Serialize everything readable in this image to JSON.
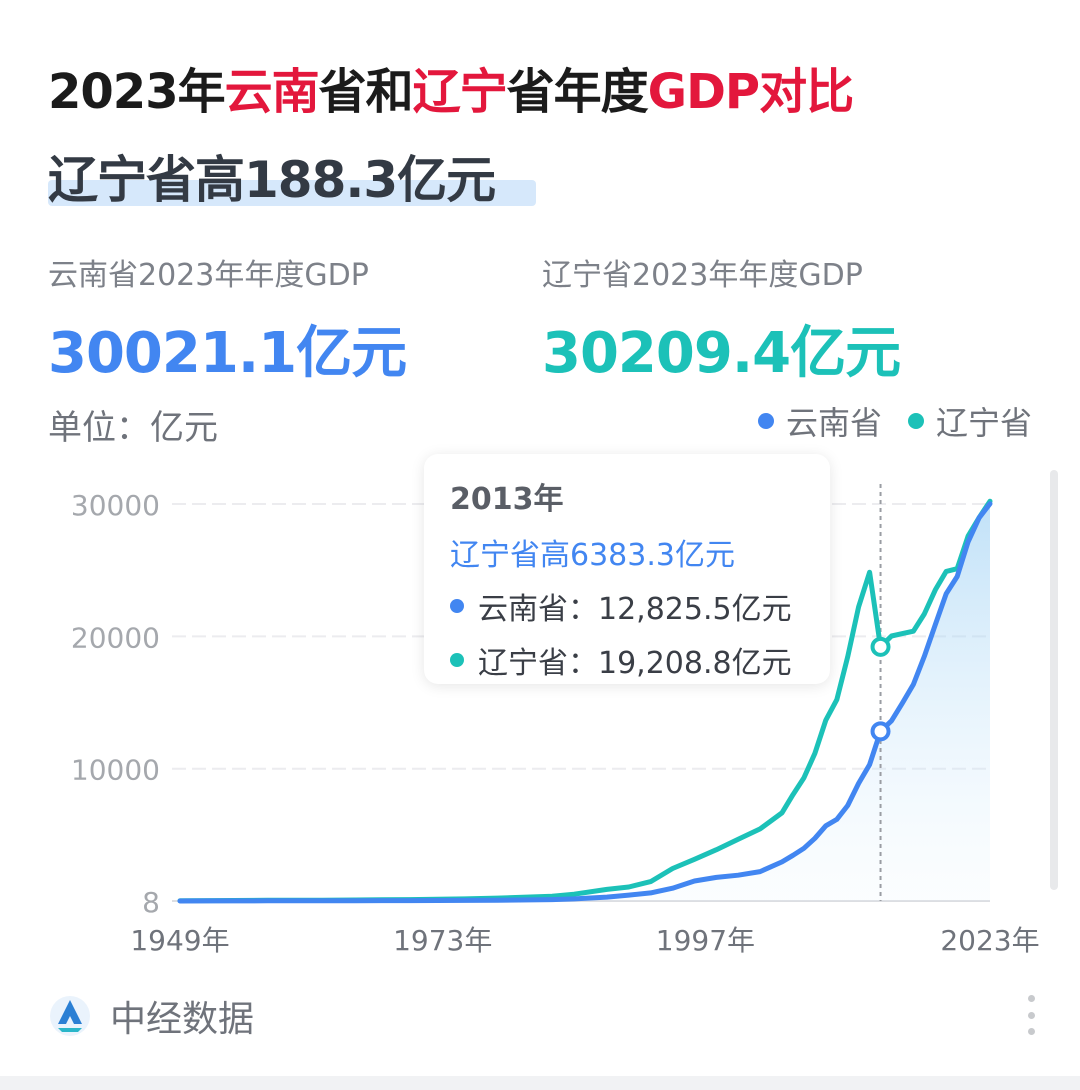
{
  "title": {
    "p1": "2023年",
    "p2": "云南",
    "p3": "省和",
    "p4": "辽宁",
    "p5": "省年度",
    "p6": "GDP对比"
  },
  "headline": "辽宁省高188.3亿元",
  "stats": [
    {
      "label": "云南省2023年年度GDP",
      "value": "30021.1亿元"
    },
    {
      "label": "辽宁省2023年年度GDP",
      "value": "30209.4亿元"
    }
  ],
  "unit_label": "单位：亿元",
  "legend": [
    {
      "name": "云南省",
      "color": "#4286f1"
    },
    {
      "name": "辽宁省",
      "color": "#1cc1b8"
    }
  ],
  "tooltip": {
    "year": "2013年",
    "diff": "辽宁省高6383.3亿元",
    "rows": [
      {
        "label": "云南省：",
        "value": "12,825.5亿元",
        "color": "#4286f1"
      },
      {
        "label": "辽宁省：",
        "value": "19,208.8亿元",
        "color": "#1cc1b8"
      }
    ]
  },
  "footer": {
    "source": "中经数据",
    "logo_icon": "zhongjing-logo-icon",
    "menu_icon": "more-vertical-icon"
  },
  "chart_data": {
    "type": "line",
    "x": [
      1949,
      1952,
      1957,
      1962,
      1965,
      1970,
      1975,
      1978,
      1980,
      1983,
      1985,
      1988,
      1990,
      1992,
      1994,
      1996,
      1998,
      2000,
      2002,
      2004,
      2005,
      2006,
      2007,
      2008,
      2009,
      2010,
      2011,
      2012,
      2013,
      2014,
      2015,
      2016,
      2017,
      2018,
      2019,
      2020,
      2021,
      2022,
      2023
    ],
    "series": [
      {
        "name": "云南省",
        "color": "#4286f1",
        "values": [
          8.9,
          11.8,
          20.0,
          24.0,
          30.0,
          40.0,
          55.0,
          69.1,
          84.3,
          110.0,
          164.9,
          300.0,
          451.7,
          618.7,
          973.9,
          1517.7,
          1793.9,
          1955.1,
          2232.3,
          2959.5,
          3462.7,
          3988.1,
          4741.3,
          5692.1,
          6170.0,
          7224.2,
          8893.1,
          10309.5,
          12825.5,
          13619.2,
          14960.0,
          16369.0,
          18486.0,
          20880.6,
          23223.8,
          24521.9,
          27146.8,
          28954.2,
          30021.1
        ]
      },
      {
        "name": "辽宁省",
        "color": "#1cc1b8",
        "values": [
          25.0,
          40.0,
          60.0,
          70.0,
          80.0,
          110.0,
          170.0,
          229.2,
          281.0,
          364.0,
          518.6,
          881.0,
          1062.7,
          1473.0,
          2461.8,
          3157.7,
          3881.7,
          4669.1,
          5458.2,
          6672.0,
          8047.3,
          9304.5,
          11164.3,
          13668.6,
          15212.5,
          18457.3,
          22226.7,
          24846.4,
          19208.8,
          20025.7,
          20210.3,
          20392.5,
          21693.0,
          23510.5,
          24909.5,
          25115.0,
          27584.1,
          28975.1,
          30209.4
        ]
      }
    ],
    "xticks": [
      "1949年",
      "1973年",
      "1997年",
      "2023年"
    ],
    "yticks": [
      "8",
      "10000",
      "20000",
      "30000"
    ],
    "xlim": [
      1949,
      2023
    ],
    "ylim": [
      8,
      30000
    ],
    "highlight_x": 2013,
    "grid": true,
    "legend_position": "top-right"
  }
}
